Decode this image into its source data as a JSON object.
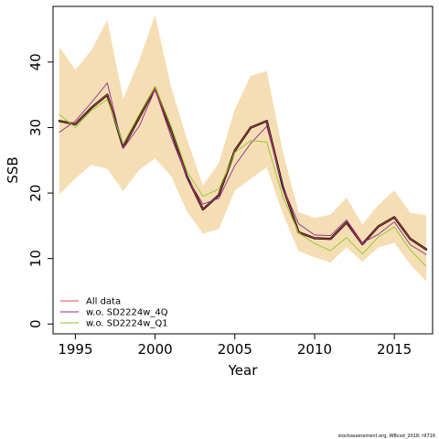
{
  "chart_data": {
    "type": "line",
    "xlabel": "Year",
    "ylabel": "SSB",
    "xlim": [
      1993.6,
      2017.4
    ],
    "ylim": [
      -1.5,
      48.5
    ],
    "x_ticks": [
      1995,
      2000,
      2005,
      2010,
      2015
    ],
    "y_ticks": [
      0,
      10,
      20,
      30,
      40
    ],
    "grid": false,
    "legend_position": "bottom-left",
    "x": [
      1994,
      1995,
      1996,
      1997,
      1998,
      1999,
      2000,
      2001,
      2002,
      2003,
      2004,
      2005,
      2006,
      2007,
      2008,
      2009,
      2010,
      2011,
      2012,
      2013,
      2014,
      2015,
      2016,
      2017
    ],
    "band": {
      "color": "#f5deb3",
      "lower": [
        19.8,
        22.2,
        24.3,
        23.7,
        20.3,
        23.5,
        25.3,
        22.6,
        17.2,
        13.8,
        14.5,
        20.4,
        22.2,
        23.9,
        16.9,
        11.1,
        10.2,
        9.4,
        11.7,
        9.5,
        11.7,
        12.4,
        9.1,
        6.5
      ],
      "upper": [
        42.3,
        38.8,
        41.8,
        46.4,
        34.4,
        40.2,
        47.2,
        36.2,
        28.2,
        21.2,
        24.6,
        32.8,
        37.9,
        38.6,
        26.4,
        17.1,
        16.2,
        16.7,
        19.3,
        15.2,
        18.2,
        20.4,
        17.0,
        16.6
      ]
    },
    "series": [
      {
        "name": "",
        "color": "#000000",
        "width": 2.4,
        "values": [
          31.0,
          30.5,
          33.0,
          35.0,
          27.0,
          31.5,
          36.0,
          29.5,
          22.5,
          17.5,
          19.7,
          26.5,
          30.0,
          31.0,
          21.0,
          14.0,
          13.1,
          13.0,
          15.5,
          12.2,
          14.9,
          16.3,
          13.0,
          11.4
        ]
      },
      {
        "name": "All data",
        "color": "#d94c4c",
        "width": 0.9,
        "values": [
          31.0,
          30.5,
          33.0,
          35.0,
          27.0,
          31.5,
          36.0,
          29.5,
          22.5,
          17.5,
          19.7,
          26.5,
          30.0,
          31.0,
          21.0,
          14.0,
          13.1,
          13.0,
          15.5,
          12.2,
          14.9,
          16.3,
          13.0,
          11.4
        ]
      },
      {
        "name": "w.o. SD2224w_4Q",
        "color": "#8b2d8b",
        "width": 0.9,
        "values": [
          29.3,
          31.0,
          33.8,
          36.8,
          26.8,
          30.2,
          35.8,
          28.6,
          22.4,
          18.3,
          19.2,
          24.2,
          27.6,
          30.2,
          21.0,
          15.3,
          13.6,
          13.5,
          15.9,
          12.4,
          13.7,
          15.6,
          12.1,
          10.6
        ]
      },
      {
        "name": "w.o. SD2224w_Q1",
        "color": "#8ac926",
        "width": 0.9,
        "values": [
          32.0,
          30.0,
          32.6,
          34.3,
          27.5,
          32.0,
          36.3,
          30.2,
          23.3,
          19.5,
          20.6,
          26.2,
          28.0,
          27.8,
          19.5,
          13.9,
          12.3,
          11.2,
          13.2,
          10.7,
          13.3,
          14.8,
          11.3,
          8.8
        ]
      }
    ]
  },
  "footer": "stockassessment.org, WBcod_2018, r9716"
}
